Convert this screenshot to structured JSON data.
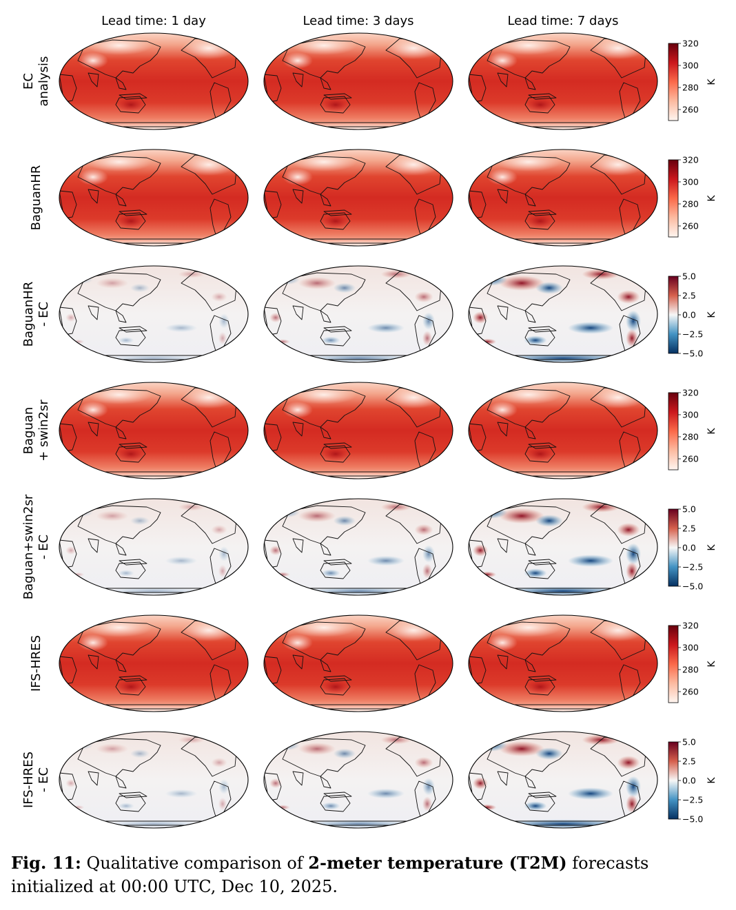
{
  "figure": {
    "columns": [
      "Lead time: 1 day",
      "Lead time: 3 days",
      "Lead time: 7 days"
    ],
    "rows": [
      {
        "lines": [
          "EC",
          "analysis"
        ],
        "kind": "temperature"
      },
      {
        "lines": [
          "BaguanHR"
        ],
        "kind": "temperature"
      },
      {
        "lines": [
          "BaguanHR",
          "- EC"
        ],
        "kind": "difference"
      },
      {
        "lines": [
          "Baguan",
          "+ swin2sr"
        ],
        "kind": "temperature"
      },
      {
        "lines": [
          "Baguan+swin2sr",
          "- EC"
        ],
        "kind": "difference"
      },
      {
        "lines": [
          "IFS-HRES"
        ],
        "kind": "temperature"
      },
      {
        "lines": [
          "IFS-HRES",
          "- EC"
        ],
        "kind": "difference"
      }
    ],
    "colorbars": {
      "temperature": {
        "ticks": [
          "320",
          "300",
          "280",
          "260"
        ],
        "tick_values": [
          320,
          300,
          280,
          260
        ],
        "range": [
          250,
          320
        ],
        "unit": "K",
        "colors": [
          "#fff5f0",
          "#fcbba1",
          "#fb6a4a",
          "#cb181d",
          "#67000d"
        ]
      },
      "difference": {
        "ticks": [
          "5.0",
          "2.5",
          "0.0",
          "−2.5",
          "−5.0"
        ],
        "tick_values": [
          5,
          2.5,
          0,
          -2.5,
          -5
        ],
        "range": [
          -5,
          5
        ],
        "unit": "K",
        "colors": [
          "#053061",
          "#4393c3",
          "#f7f7f7",
          "#d6604d",
          "#67001f"
        ]
      }
    }
  },
  "caption": {
    "label": "Fig. 11:",
    "text_1": " Qualitative comparison of ",
    "bold": "2-meter temperature (T2M)",
    "text_2": " forecasts initialized at 00:00 UTC, Dec 10, 2025."
  }
}
